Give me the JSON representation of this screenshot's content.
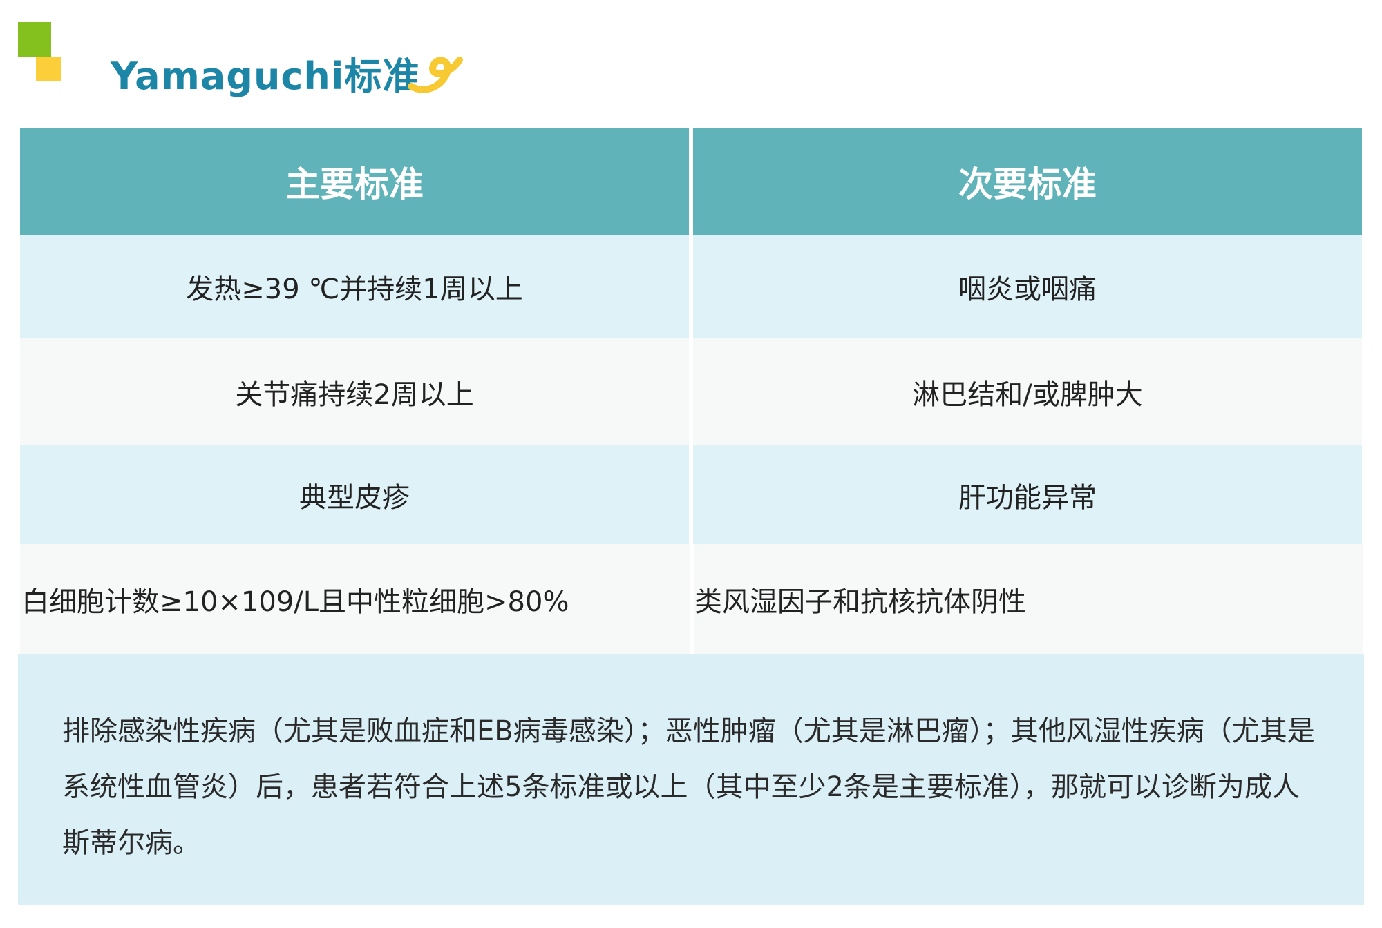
{
  "title": "Yamaguchi标准",
  "colors": {
    "header": "#5fb3b9",
    "title": "#1d86a6",
    "accent_green": "#84c11f",
    "accent_yellow": "#fccf3a",
    "row_light_blue": "#def2f8"
  },
  "table": {
    "headers": [
      "主要标准",
      "次要标准"
    ],
    "rows": [
      [
        "发热≥39 ℃并持续1周以上",
        "咽炎或咽痛"
      ],
      [
        "关节痛持续2周以上",
        "淋巴结和/或脾肿大"
      ],
      [
        "典型皮疹",
        "肝功能异常"
      ],
      [
        "白细胞计数≥10×109/L且中性粒细胞>80%",
        "类风湿因子和抗核抗体阴性"
      ]
    ]
  },
  "note": "排除感染性疾病（尤其是败血症和EB病毒感染）；恶性肿瘤（尤其是淋巴瘤）；其他风湿性疾病（尤其是系统性血管炎）后，患者若符合上述5条标准或以上（其中至少2条是主要标准），那就可以诊断为成人斯蒂尔病。"
}
